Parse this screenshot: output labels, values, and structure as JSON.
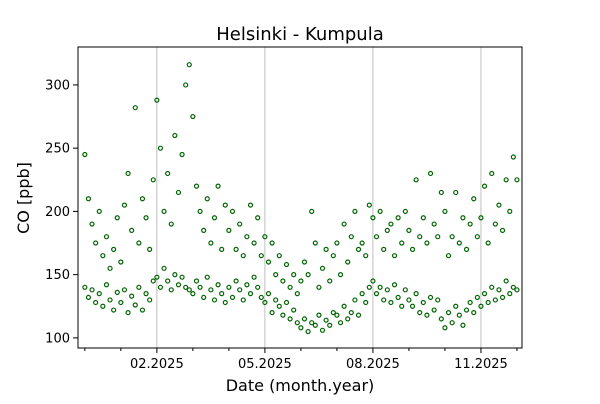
{
  "chart_data": {
    "type": "scatter",
    "title": "Helsinki - Kumpula",
    "x_label": "Date (month.year)",
    "y_label": "CO [ppb]",
    "xlim": [
      -0.19,
      12.14
    ],
    "ylim": [
      92,
      330
    ],
    "xticks": [
      {
        "value": 2,
        "label": "02.2025"
      },
      {
        "value": 5,
        "label": "05.2025"
      },
      {
        "value": 8,
        "label": "08.2025"
      },
      {
        "value": 11,
        "label": "11.2025"
      }
    ],
    "xminorticks": [
      0,
      1,
      3,
      4,
      6,
      7,
      9,
      10,
      12
    ],
    "yticks": [
      100,
      150,
      200,
      250,
      300
    ],
    "grid": "x",
    "x": [
      0,
      0.1,
      0.2,
      0.3,
      0.4,
      0.5,
      0.6,
      0.7,
      0.8,
      0.9,
      1,
      1.1,
      1.2,
      1.3,
      1.4,
      1.5,
      1.6,
      1.7,
      1.8,
      1.9,
      2,
      2.1,
      2.2,
      2.3,
      2.4,
      2.5,
      2.6,
      2.7,
      2.8,
      2.9,
      3,
      3.1,
      3.2,
      3.3,
      3.4,
      3.5,
      3.6,
      3.7,
      3.8,
      3.9,
      4,
      4.1,
      4.2,
      4.3,
      4.4,
      4.5,
      4.6,
      4.7,
      4.8,
      4.9,
      5,
      5.1,
      5.2,
      5.3,
      5.4,
      5.5,
      5.6,
      5.7,
      5.8,
      5.9,
      6,
      6.1,
      6.2,
      6.3,
      6.4,
      6.5,
      6.6,
      6.7,
      6.8,
      6.9,
      7,
      7.1,
      7.2,
      7.3,
      7.4,
      7.5,
      7.6,
      7.7,
      7.8,
      7.9,
      8,
      8.1,
      8.2,
      8.3,
      8.4,
      8.5,
      8.6,
      8.7,
      8.8,
      8.9,
      9,
      9.1,
      9.2,
      9.3,
      9.4,
      9.5,
      9.6,
      9.7,
      9.8,
      9.9,
      10,
      10.1,
      10.2,
      10.3,
      10.4,
      10.5,
      10.6,
      10.7,
      10.8,
      10.9,
      11,
      11.1,
      11.2,
      11.3,
      11.4,
      11.5,
      11.6,
      11.7,
      11.8,
      11.9,
      12,
      0,
      0.1,
      0.2,
      0.3,
      0.4,
      0.5,
      0.6,
      0.7,
      0.8,
      0.9,
      1,
      1.1,
      1.2,
      1.3,
      1.4,
      1.5,
      1.6,
      1.7,
      1.8,
      1.9,
      2,
      2.1,
      2.2,
      2.3,
      2.4,
      2.5,
      2.6,
      2.7,
      2.8,
      2.9,
      3,
      3.1,
      3.2,
      3.3,
      3.4,
      3.5,
      3.6,
      3.7,
      3.8,
      3.9,
      4,
      4.1,
      4.2,
      4.3,
      4.4,
      4.5,
      4.6,
      4.7,
      4.8,
      4.9,
      5,
      5.1,
      5.2,
      5.3,
      5.4,
      5.5,
      5.6,
      5.7,
      5.8,
      5.9,
      6,
      6.1,
      6.2,
      6.3,
      6.4,
      6.5,
      6.6,
      6.7,
      6.8,
      6.9,
      7,
      7.1,
      7.2,
      7.3,
      7.4,
      7.5,
      7.6,
      7.7,
      7.8,
      7.9,
      8,
      8.1,
      8.2,
      8.3,
      8.4,
      8.5,
      8.6,
      8.7,
      8.8,
      8.9,
      9,
      9.1,
      9.2,
      9.3,
      9.4,
      9.5,
      9.6,
      9.7,
      9.8,
      9.9,
      10,
      10.1,
      10.2,
      10.3,
      10.4,
      10.5,
      10.6,
      10.7,
      10.8,
      10.9,
      11,
      11.1,
      11.2,
      11.3,
      11.4,
      11.5,
      11.6,
      11.7,
      11.8,
      11.9,
      12
    ],
    "series": [
      {
        "color": "#006400",
        "values": [
          140,
          132,
          138,
          128,
          135,
          125,
          142,
          130,
          122,
          136,
          128,
          138,
          120,
          133,
          126,
          140,
          122,
          135,
          130,
          145,
          148,
          140,
          155,
          145,
          138,
          150,
          142,
          148,
          140,
          138,
          135,
          145,
          140,
          132,
          148,
          138,
          130,
          142,
          135,
          128,
          140,
          132,
          145,
          138,
          130,
          142,
          135,
          148,
          140,
          132,
          128,
          135,
          120,
          130,
          125,
          118,
          128,
          115,
          122,
          112,
          108,
          115,
          105,
          112,
          110,
          118,
          106,
          114,
          110,
          120,
          118,
          112,
          125,
          115,
          120,
          130,
          118,
          135,
          128,
          140,
          145,
          135,
          140,
          130,
          138,
          128,
          142,
          132,
          125,
          138,
          130,
          125,
          135,
          120,
          128,
          118,
          132,
          122,
          130,
          115,
          108,
          120,
          112,
          125,
          118,
          110,
          122,
          128,
          120,
          132,
          125,
          135,
          128,
          140,
          130,
          138,
          132,
          145,
          135,
          140,
          138,
          245,
          210,
          190,
          175,
          200,
          165,
          180,
          155,
          170,
          195,
          160,
          205,
          230,
          185,
          282,
          175,
          210,
          195,
          170,
          225,
          288,
          250,
          200,
          230,
          190,
          260,
          215,
          245,
          300,
          316,
          275,
          220,
          200,
          185,
          210,
          175,
          195,
          220,
          170,
          205,
          185,
          200,
          170,
          190,
          165,
          180,
          205,
          175,
          195,
          165,
          180,
          160,
          175,
          150,
          165,
          145,
          158,
          140,
          150,
          135,
          145,
          160,
          150,
          200,
          175,
          140,
          155,
          170,
          145,
          165,
          175,
          150,
          190,
          160,
          180,
          200,
          170,
          175,
          165,
          205,
          195,
          180,
          200,
          170,
          185,
          190,
          165,
          195,
          175,
          200,
          185,
          170,
          225,
          180,
          195,
          175,
          230,
          190,
          180,
          215,
          200,
          165,
          180,
          215,
          175,
          195,
          170,
          190,
          210,
          180,
          195,
          220,
          175,
          230,
          190,
          205,
          185,
          225,
          200,
          243,
          225
        ]
      }
    ]
  }
}
